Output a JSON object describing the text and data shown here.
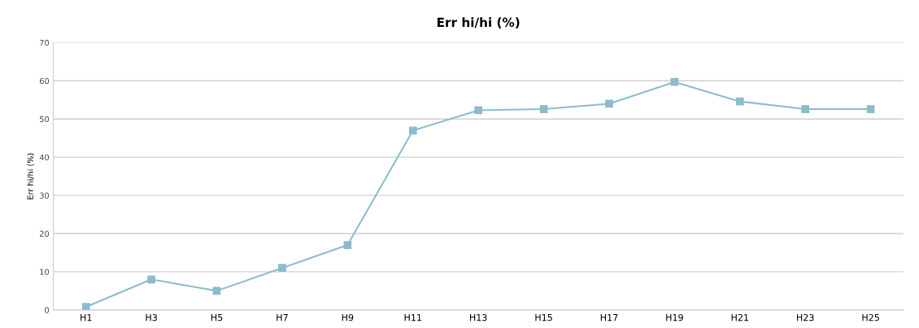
{
  "chart_data": {
    "type": "line",
    "title": "Err hi/hi (%)",
    "ylabel": "Err hi/hi (%)",
    "categories": [
      "H1",
      "H3",
      "H5",
      "H7",
      "H9",
      "H11",
      "H13",
      "H15",
      "H17",
      "H19",
      "H21",
      "H23",
      "H25"
    ],
    "series": [
      {
        "color": "#8cbccc",
        "values": [
          0.8,
          8,
          5,
          11,
          17,
          47,
          52.3,
          52.6,
          54,
          59.7,
          54.6,
          52.6,
          52.6
        ]
      }
    ],
    "ylim": [
      0,
      70
    ],
    "yticks": [
      0,
      10,
      20,
      30,
      40,
      50,
      60,
      70
    ],
    "grid": "y",
    "marker": "square",
    "line_style": "solid"
  }
}
